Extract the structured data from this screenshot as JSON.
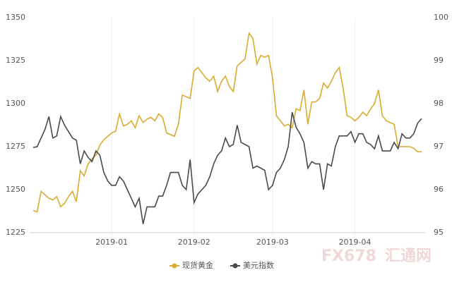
{
  "chart_data": {
    "type": "line",
    "categories": [
      null,
      null,
      null,
      null,
      null,
      null,
      null,
      null,
      null,
      null,
      null,
      null,
      null,
      null,
      null,
      null,
      null,
      null,
      null,
      null,
      "2019-01",
      null,
      null,
      null,
      null,
      null,
      null,
      null,
      null,
      null,
      null,
      null,
      null,
      null,
      null,
      null,
      null,
      null,
      null,
      null,
      null,
      "2019-02",
      null,
      null,
      null,
      null,
      null,
      null,
      null,
      null,
      null,
      null,
      null,
      null,
      null,
      null,
      null,
      null,
      null,
      null,
      null,
      "2019-03",
      null,
      null,
      null,
      null,
      null,
      null,
      null,
      null,
      null,
      null,
      null,
      null,
      null,
      null,
      null,
      null,
      null,
      null,
      null,
      null,
      "2019-04",
      null,
      null,
      null,
      null,
      null,
      null,
      null,
      null,
      null,
      null,
      null,
      null,
      null,
      null,
      null,
      null,
      null
    ],
    "series": [
      {
        "name": "现货黄金",
        "color": "#d9ac2e",
        "values": [
          1238,
          1237,
          1249,
          1247,
          1245,
          1244,
          1246,
          1240,
          1242,
          1246,
          1249,
          1243,
          1261,
          1258,
          1265,
          1268,
          1270,
          1276,
          1279,
          1281,
          1283,
          1284,
          1294,
          1287,
          1288,
          1290,
          1286,
          1293,
          1289,
          1291,
          1292,
          1290,
          1294,
          1292,
          1283,
          1282,
          1281,
          1288,
          1305,
          1304,
          1303,
          1319,
          1321,
          1318,
          1315,
          1313,
          1316,
          1307,
          1313,
          1316,
          1310,
          1307,
          1322,
          1324,
          1326,
          1341,
          1338,
          1323,
          1328,
          1327,
          1328,
          1315,
          1293,
          1290,
          1287,
          1288,
          1286,
          1297,
          1296,
          1308,
          1288,
          1301,
          1301,
          1303,
          1312,
          1309,
          1313,
          1318,
          1321,
          1309,
          1293,
          1292,
          1290,
          1292,
          1295,
          1293,
          1297,
          1300,
          1308,
          1293,
          1290,
          1289,
          1288,
          1275,
          1275,
          1275,
          1275,
          1274,
          1272,
          1272
        ]
      },
      {
        "name": "美元指数",
        "color": "#464a50",
        "axis": "y2",
        "values": [
          96.98,
          97.0,
          97.2,
          97.4,
          97.7,
          97.2,
          97.25,
          97.7,
          97.5,
          97.35,
          97.2,
          97.15,
          96.6,
          96.9,
          96.75,
          96.65,
          96.9,
          96.8,
          96.4,
          96.2,
          96.1,
          96.1,
          96.3,
          96.2,
          96.0,
          95.8,
          95.6,
          95.8,
          95.2,
          95.6,
          95.6,
          95.6,
          95.85,
          95.85,
          96.1,
          96.4,
          96.4,
          96.4,
          96.1,
          96.0,
          96.7,
          95.7,
          95.9,
          96.0,
          96.1,
          96.3,
          96.6,
          96.8,
          96.9,
          97.2,
          97.0,
          97.05,
          97.5,
          97.1,
          97.05,
          97.0,
          96.5,
          96.55,
          96.5,
          96.45,
          96.0,
          96.1,
          96.4,
          96.5,
          96.7,
          97.0,
          97.8,
          97.45,
          97.3,
          97.1,
          96.5,
          96.65,
          96.6,
          96.6,
          96.0,
          96.6,
          96.55,
          97.0,
          97.25,
          97.25,
          97.25,
          97.35,
          97.1,
          97.3,
          97.3,
          97.1,
          97.05,
          96.95,
          97.25,
          96.9,
          96.9,
          96.9,
          97.1,
          96.95,
          97.3,
          97.2,
          97.2,
          97.3,
          97.55,
          97.65
        ]
      }
    ],
    "ylim": [
      1225,
      1350
    ],
    "yticks": [
      1225,
      1250,
      1275,
      1300,
      1325,
      1350
    ],
    "y2lim": [
      95,
      100
    ],
    "y2ticks": [
      95,
      96,
      97,
      98,
      99,
      100
    ],
    "legend": "bottom"
  },
  "watermark": [
    "FX678",
    "汇通网"
  ]
}
